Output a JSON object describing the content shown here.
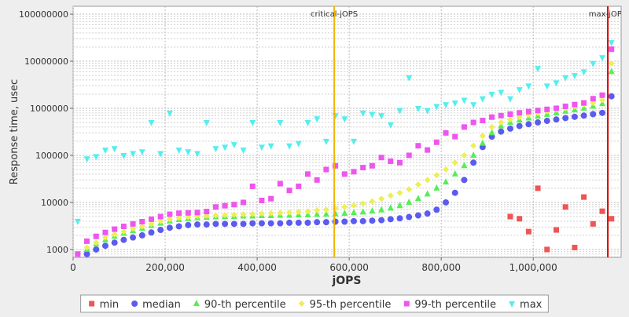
{
  "chart_data": {
    "type": "scatter",
    "x_label": "jOPS",
    "y_label": "Response time, usec",
    "log_y": true,
    "grid": true,
    "legend": "bottom",
    "xlim": [
      0,
      1191000
    ],
    "ylim": [
      680,
      147000000
    ],
    "xticks": [
      {
        "value": 0,
        "label": "0"
      },
      {
        "value": 200000,
        "label": "200,000"
      },
      {
        "value": 400000,
        "label": "400,000"
      },
      {
        "value": 600000,
        "label": "600,000"
      },
      {
        "value": 800000,
        "label": "800,000"
      },
      {
        "value": 1000000,
        "label": "1,000,000"
      }
    ],
    "yticks": [
      1000,
      10000,
      100000,
      1000000,
      10000000,
      100000000
    ],
    "markers": [
      {
        "label": "critical-jOPS",
        "value": 567500,
        "color": "#f0b400"
      },
      {
        "label": "max-jOPS",
        "value": 1162000,
        "color": "#e00000"
      }
    ],
    "x": [
      10000,
      30000,
      50000,
      70000,
      90000,
      110000,
      130000,
      150000,
      170000,
      190000,
      210000,
      230000,
      250000,
      270000,
      290000,
      310000,
      330000,
      350000,
      370000,
      390000,
      410000,
      430000,
      450000,
      470000,
      490000,
      510000,
      530000,
      550000,
      570000,
      590000,
      610000,
      630000,
      650000,
      670000,
      690000,
      710000,
      730000,
      750000,
      770000,
      790000,
      810000,
      830000,
      850000,
      870000,
      890000,
      910000,
      930000,
      950000,
      970000,
      990000,
      1010000,
      1030000,
      1050000,
      1070000,
      1090000,
      1110000,
      1130000,
      1150000,
      1170000
    ],
    "series": [
      {
        "name": "min",
        "color": "#ee5555",
        "marker": "square",
        "values": [
          null,
          null,
          null,
          null,
          null,
          null,
          null,
          null,
          null,
          null,
          null,
          null,
          null,
          null,
          null,
          null,
          null,
          null,
          null,
          null,
          null,
          null,
          null,
          null,
          null,
          null,
          null,
          null,
          null,
          null,
          null,
          null,
          null,
          null,
          null,
          null,
          null,
          null,
          null,
          null,
          null,
          null,
          null,
          null,
          null,
          null,
          null,
          5000,
          4500,
          2400,
          20000,
          1000,
          2600,
          8000,
          1100,
          13000,
          3500,
          6500,
          4500
        ]
      },
      {
        "name": "median",
        "color": "#5b5bf0",
        "marker": "circle",
        "values": [
          null,
          800,
          1000,
          1200,
          1400,
          1600,
          1800,
          2000,
          2300,
          2600,
          2900,
          3100,
          3300,
          3400,
          3400,
          3500,
          3500,
          3500,
          3500,
          3600,
          3600,
          3600,
          3600,
          3700,
          3700,
          3700,
          3800,
          3800,
          3900,
          3900,
          4000,
          4000,
          4100,
          4200,
          4400,
          4600,
          4900,
          5300,
          5800,
          7000,
          10000,
          16000,
          30000,
          70000,
          150000,
          250000,
          320000,
          370000,
          420000,
          460000,
          500000,
          540000,
          580000,
          620000,
          660000,
          700000,
          750000,
          800000,
          1800000
        ]
      },
      {
        "name": "90-th percentile",
        "color": "#55ee55",
        "marker": "triangle-up",
        "values": [
          null,
          1000,
          1300,
          1600,
          1900,
          2200,
          2500,
          2800,
          3200,
          3600,
          4000,
          4300,
          4500,
          4700,
          4800,
          4900,
          5000,
          5000,
          5100,
          5100,
          5200,
          5200,
          5300,
          5300,
          5400,
          5400,
          5500,
          5600,
          5700,
          5800,
          6000,
          6200,
          6500,
          6900,
          7500,
          8500,
          10000,
          12000,
          15000,
          20000,
          27000,
          40000,
          60000,
          100000,
          180000,
          300000,
          420000,
          500000,
          560000,
          620000,
          680000,
          740000,
          800000,
          860000,
          920000,
          1000000,
          1100000,
          1250000,
          6000000
        ]
      },
      {
        "name": "95-th percentile",
        "color": "#eeee55",
        "marker": "diamond",
        "values": [
          null,
          1100,
          1400,
          1800,
          2100,
          2400,
          2800,
          3100,
          3500,
          4000,
          4400,
          4700,
          4900,
          5100,
          5200,
          5300,
          5400,
          5500,
          5600,
          5700,
          5800,
          5900,
          6000,
          6100,
          6300,
          6500,
          6800,
          7000,
          7500,
          8000,
          8600,
          9500,
          10500,
          12000,
          14000,
          16000,
          19000,
          24000,
          30000,
          38000,
          50000,
          70000,
          100000,
          160000,
          260000,
          400000,
          500000,
          580000,
          650000,
          720000,
          790000,
          860000,
          940000,
          1000000,
          1100000,
          1200000,
          1300000,
          1500000,
          9000000
        ]
      },
      {
        "name": "99-th percentile",
        "color": "#ee55ee",
        "marker": "square",
        "values": [
          800,
          1500,
          1900,
          2300,
          2700,
          3100,
          3500,
          3900,
          4400,
          5000,
          5600,
          5900,
          6000,
          6100,
          6400,
          8000,
          8500,
          9000,
          10000,
          22000,
          11000,
          12000,
          25000,
          18000,
          22000,
          40000,
          30000,
          50000,
          60000,
          40000,
          45000,
          55000,
          60000,
          90000,
          75000,
          70000,
          100000,
          160000,
          130000,
          190000,
          300000,
          250000,
          400000,
          500000,
          550000,
          650000,
          700000,
          750000,
          800000,
          850000,
          900000,
          950000,
          1000000,
          1100000,
          1200000,
          1300000,
          1600000,
          1900000,
          18000000
        ]
      },
      {
        "name": "max",
        "color": "#55eeee",
        "marker": "triangle-down",
        "values": [
          4000,
          85000,
          95000,
          130000,
          140000,
          100000,
          110000,
          120000,
          500000,
          110000,
          800000,
          130000,
          120000,
          110000,
          500000,
          140000,
          150000,
          170000,
          130000,
          500000,
          150000,
          160000,
          500000,
          160000,
          180000,
          500000,
          600000,
          200000,
          700000,
          600000,
          200000,
          800000,
          750000,
          700000,
          450000,
          900000,
          4500000,
          1000000,
          900000,
          1100000,
          1200000,
          1300000,
          1500000,
          1200000,
          1600000,
          2000000,
          2200000,
          1600000,
          2500000,
          3000000,
          7000000,
          3000000,
          3500000,
          4500000,
          5000000,
          6000000,
          9000000,
          12000000,
          25000000
        ]
      }
    ]
  }
}
